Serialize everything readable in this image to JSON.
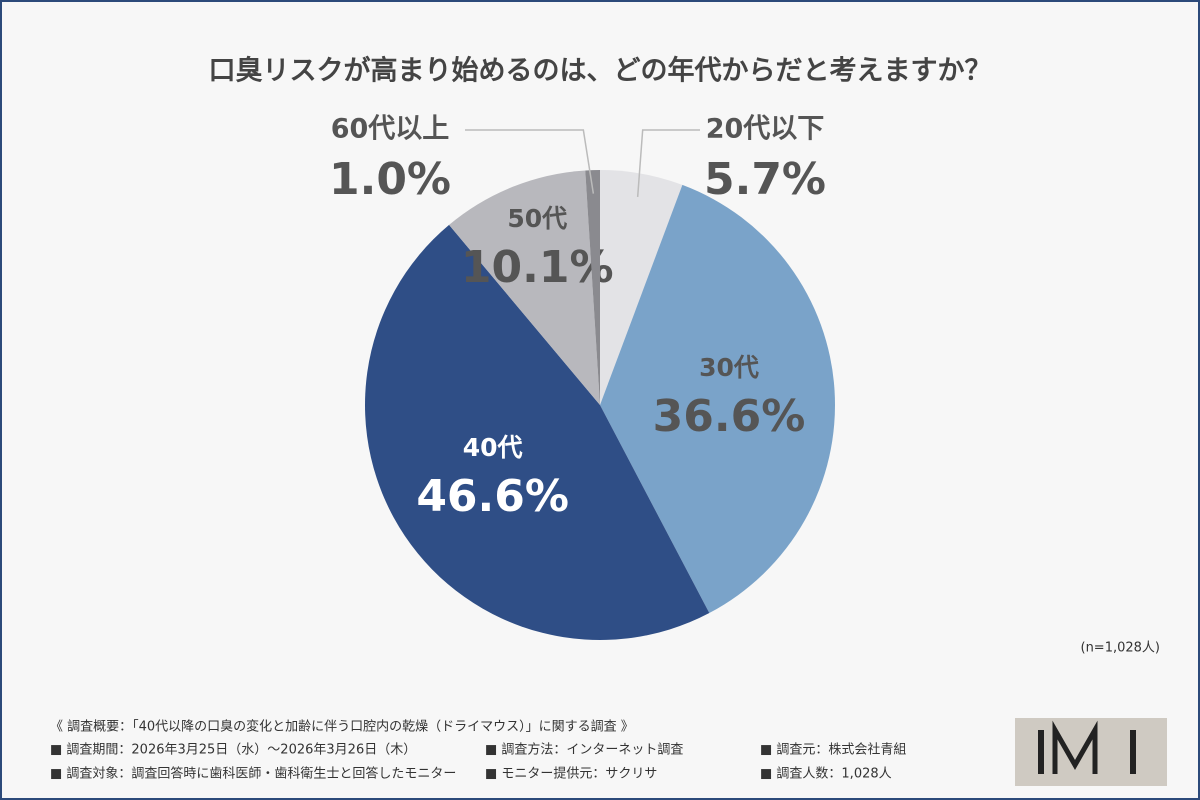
{
  "chart_data": {
    "type": "pie",
    "title": "口臭リスクが高まり始めるのは、どの年代からだと考えますか？",
    "categories": [
      "20代以下",
      "30代",
      "40代",
      "50代",
      "60代以上"
    ],
    "values": [
      5.7,
      36.6,
      46.6,
      10.1,
      1.0
    ],
    "value_labels": [
      "5.7%",
      "36.6%",
      "46.6%",
      "10.1%",
      "1.0%"
    ],
    "colors": [
      "#e3e3e6",
      "#7aa3c9",
      "#2f4e86",
      "#b8b8bd",
      "#8a8a8f"
    ],
    "note": "(n=1,028人)"
  },
  "footer": {
    "heading": "《 調査概要：「40代以降の口臭の変化と加齢に伴う口腔内の乾燥（ドライマウス）」に関する調査 》",
    "rows": [
      [
        "■ 調査期間：2026年3月25日（水）〜2026年3月26日（木）",
        "■ 調査方法：インターネット調査",
        "■ 調査元：株式会社青組"
      ],
      [
        "■ 調査対象：調査回答時に歯科医師・歯科衛生士と回答したモニター",
        "■ モニター提供元：サクリサ",
        "■ 調査人数：1,028人"
      ]
    ]
  }
}
